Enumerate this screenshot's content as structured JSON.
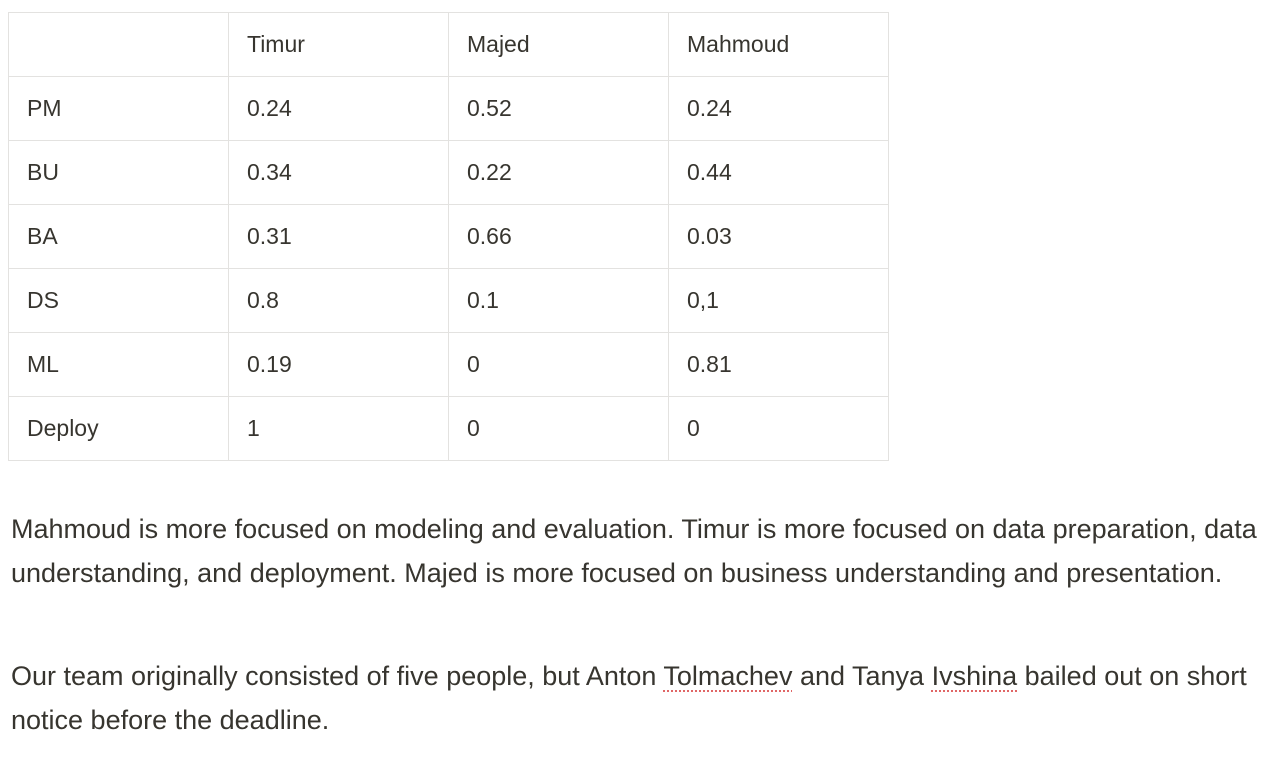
{
  "table": {
    "header": [
      "",
      "Timur",
      "Majed",
      "Mahmoud"
    ],
    "rows": [
      [
        "PM",
        "0.24",
        "0.52",
        "0.24"
      ],
      [
        "BU",
        "0.34",
        "0.22",
        "0.44"
      ],
      [
        "BA",
        "0.31",
        "0.66",
        "0.03"
      ],
      [
        "DS",
        "0.8",
        "0.1",
        "0,1"
      ],
      [
        "ML",
        "0.19",
        "0",
        "0.81"
      ],
      [
        "Deploy",
        "1",
        "0",
        "0"
      ]
    ]
  },
  "paragraphs": {
    "focus": "Mahmoud is more focused on modeling and evaluation. Timur is more focused on data preparation, data understanding, and deployment. Majed is more focused on business understanding and presentation.",
    "team": {
      "part1": "Our team originally consisted of five people, but Anton ",
      "name1": "Tolmachev",
      "part2": " and Tanya ",
      "name2": "Ivshina",
      "part3": " bailed out on short notice before the deadline."
    }
  },
  "colors": {
    "text": "#37352f",
    "border": "#e3e2e0",
    "spellcheck_underline": "#e06666"
  }
}
